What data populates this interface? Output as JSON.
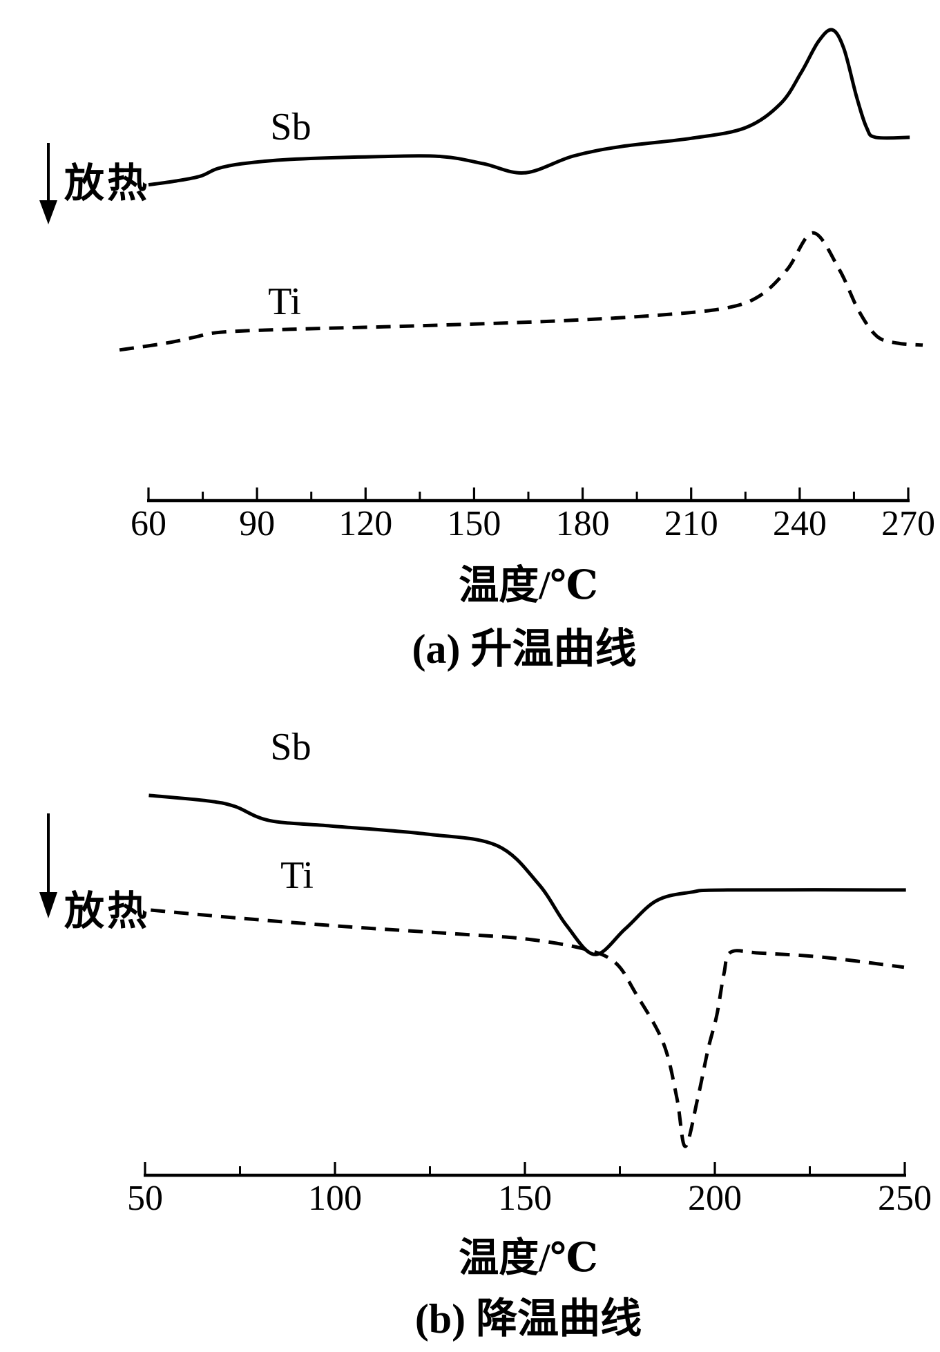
{
  "figure": {
    "background": "#ffffff",
    "ink_color": "#000000"
  },
  "chart_data": [
    {
      "type": "line",
      "panel": "a",
      "caption": "(a) 升温曲线",
      "xlabel": "温度/℃",
      "exo_label": "放热",
      "exo_arrow": "down",
      "xlim": [
        60,
        270
      ],
      "x_ticks": [
        60,
        90,
        120,
        150,
        180,
        210,
        240,
        270
      ],
      "minor_ticks_between": true,
      "y_units": "arbitrary (normalized 0-1, exothermic arrow points down)",
      "grid": false,
      "legend_position": "labels-on-curves",
      "annotations": {
        "Sb_endothermic_dip_c": 164,
        "Sb_main_peak_c": 249,
        "Ti_main_peak_c": 244
      },
      "series": [
        {
          "name": "Sb",
          "line_style": "solid",
          "x": [
            60,
            67.6,
            74.3,
            79.1,
            85.8,
            99,
            124,
            141,
            152.6,
            164,
            177.4,
            190.8,
            210,
            225,
            234.7,
            240.4,
            245.2,
            249,
            252.2,
            255.7,
            258.5,
            261,
            270.4
          ],
          "y": [
            0.658,
            0.666,
            0.676,
            0.692,
            0.702,
            0.711,
            0.717,
            0.717,
            0.702,
            0.683,
            0.718,
            0.738,
            0.755,
            0.777,
            0.827,
            0.892,
            0.957,
            0.981,
            0.942,
            0.842,
            0.777,
            0.757,
            0.757
          ]
        },
        {
          "name": "Ti",
          "line_style": "dashed",
          "x": [
            52,
            64.8,
            72.4,
            80,
            99,
            133.5,
            171.7,
            200.3,
            219.4,
            229,
            236.6,
            243.7,
            250.9,
            256.3,
            261.4,
            267.1,
            274
          ],
          "y": [
            0.314,
            0.328,
            0.34,
            0.351,
            0.357,
            0.364,
            0.374,
            0.386,
            0.401,
            0.427,
            0.482,
            0.558,
            0.482,
            0.396,
            0.342,
            0.328,
            0.324
          ]
        }
      ]
    },
    {
      "type": "line",
      "panel": "b",
      "caption": "(b) 降温曲线",
      "xlabel": "温度/℃",
      "exo_label": "放热",
      "exo_arrow": "down",
      "xlim": [
        50,
        250
      ],
      "x_ticks": [
        50,
        100,
        150,
        200,
        250
      ],
      "minor_ticks_between": true,
      "y_units": "arbitrary (normalized 0-1, exothermic arrow points down)",
      "grid": false,
      "legend_position": "labels-on-curves",
      "annotations": {
        "Sb_exothermic_dip_c": 168,
        "Ti_exothermic_dip_c": 192
      },
      "series": [
        {
          "name": "Sb",
          "line_style": "solid",
          "x": [
            51,
            66.4,
            73.6,
            82.7,
            99,
            124.5,
            142.7,
            153.6,
            160.9,
            168.4,
            176.4,
            184.5,
            193.6,
            203.3,
            250.3
          ],
          "y": [
            0.831,
            0.819,
            0.807,
            0.776,
            0.764,
            0.746,
            0.721,
            0.637,
            0.547,
            0.483,
            0.539,
            0.6,
            0.619,
            0.624,
            0.624
          ]
        },
        {
          "name": "Ti",
          "line_style": "dashed",
          "x": [
            51.5,
            75.5,
            102.7,
            130,
            150,
            165.6,
            173.8,
            179.1,
            186.4,
            190,
            192.2,
            195.5,
            198.2,
            200.5,
            202.4,
            204.2,
            211.8,
            228.4,
            249.8
          ],
          "y": [
            0.58,
            0.562,
            0.544,
            0.529,
            0.517,
            0.495,
            0.465,
            0.399,
            0.29,
            0.169,
            0.063,
            0.169,
            0.275,
            0.35,
            0.441,
            0.488,
            0.486,
            0.477,
            0.455
          ]
        }
      ]
    }
  ]
}
